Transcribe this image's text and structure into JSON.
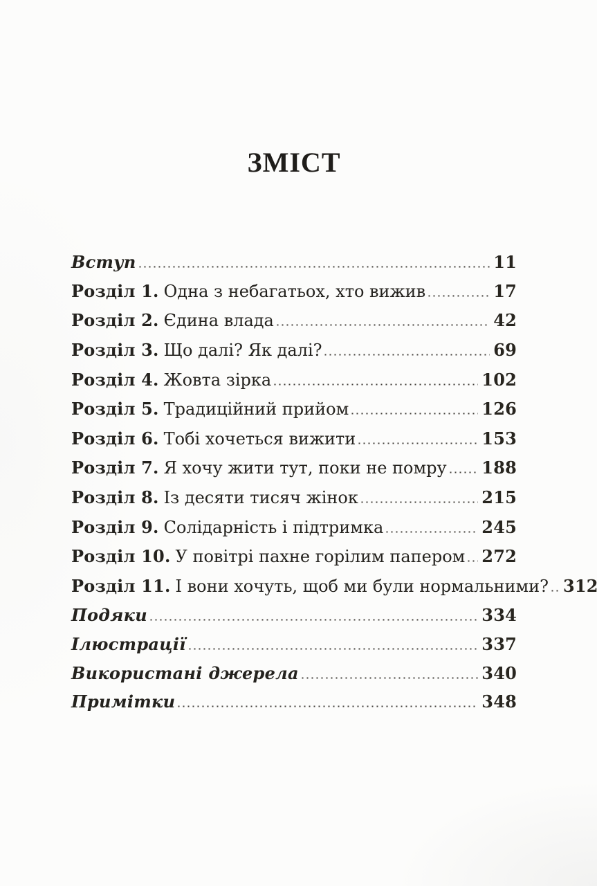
{
  "page": {
    "title": "ЗМІСТ"
  },
  "colors": {
    "ink": "#24221e",
    "paper": "#fcfcfb",
    "dot_leader": "#43403b"
  },
  "toc": {
    "entries": [
      {
        "prefix": "",
        "label": "Вступ",
        "page": "11",
        "variant": "matter"
      },
      {
        "prefix": "Розділ 1.",
        "label": "Одна з небагатьох, хто вижив",
        "page": "17",
        "variant": "chapter"
      },
      {
        "prefix": "Розділ 2.",
        "label": "Єдина влада",
        "page": "42",
        "variant": "chapter"
      },
      {
        "prefix": "Розділ 3.",
        "label": "Що далі? Як далі?",
        "page": "69",
        "variant": "chapter"
      },
      {
        "prefix": "Розділ 4.",
        "label": "Жовта зірка",
        "page": "102",
        "variant": "chapter"
      },
      {
        "prefix": "Розділ 5.",
        "label": "Традиційний прийом",
        "page": "126",
        "variant": "chapter"
      },
      {
        "prefix": "Розділ 6.",
        "label": "Тобі хочеться вижити",
        "page": "153",
        "variant": "chapter"
      },
      {
        "prefix": "Розділ 7.",
        "label": "Я хочу жити тут, поки не помру",
        "page": "188",
        "variant": "chapter"
      },
      {
        "prefix": "Розділ 8.",
        "label": "Із десяти тисяч жінок",
        "page": "215",
        "variant": "chapter"
      },
      {
        "prefix": "Розділ 9.",
        "label": "Солідарність і підтримка",
        "page": "245",
        "variant": "chapter"
      },
      {
        "prefix": "Розділ 10.",
        "label": "У повітрі пахне горілим папером",
        "page": "272",
        "variant": "chapter"
      },
      {
        "prefix": "Розділ 11.",
        "label": "І вони хочуть, щоб ми були нормальними?",
        "page": "312",
        "variant": "chapter"
      },
      {
        "prefix": "",
        "label": "Подяки",
        "page": "334",
        "variant": "matter"
      },
      {
        "prefix": "",
        "label": "Ілюстрації",
        "page": "337",
        "variant": "matter"
      },
      {
        "prefix": "",
        "label": "Використані джерела",
        "page": "340",
        "variant": "matter"
      },
      {
        "prefix": "",
        "label": "Примітки",
        "page": "348",
        "variant": "matter"
      }
    ]
  }
}
